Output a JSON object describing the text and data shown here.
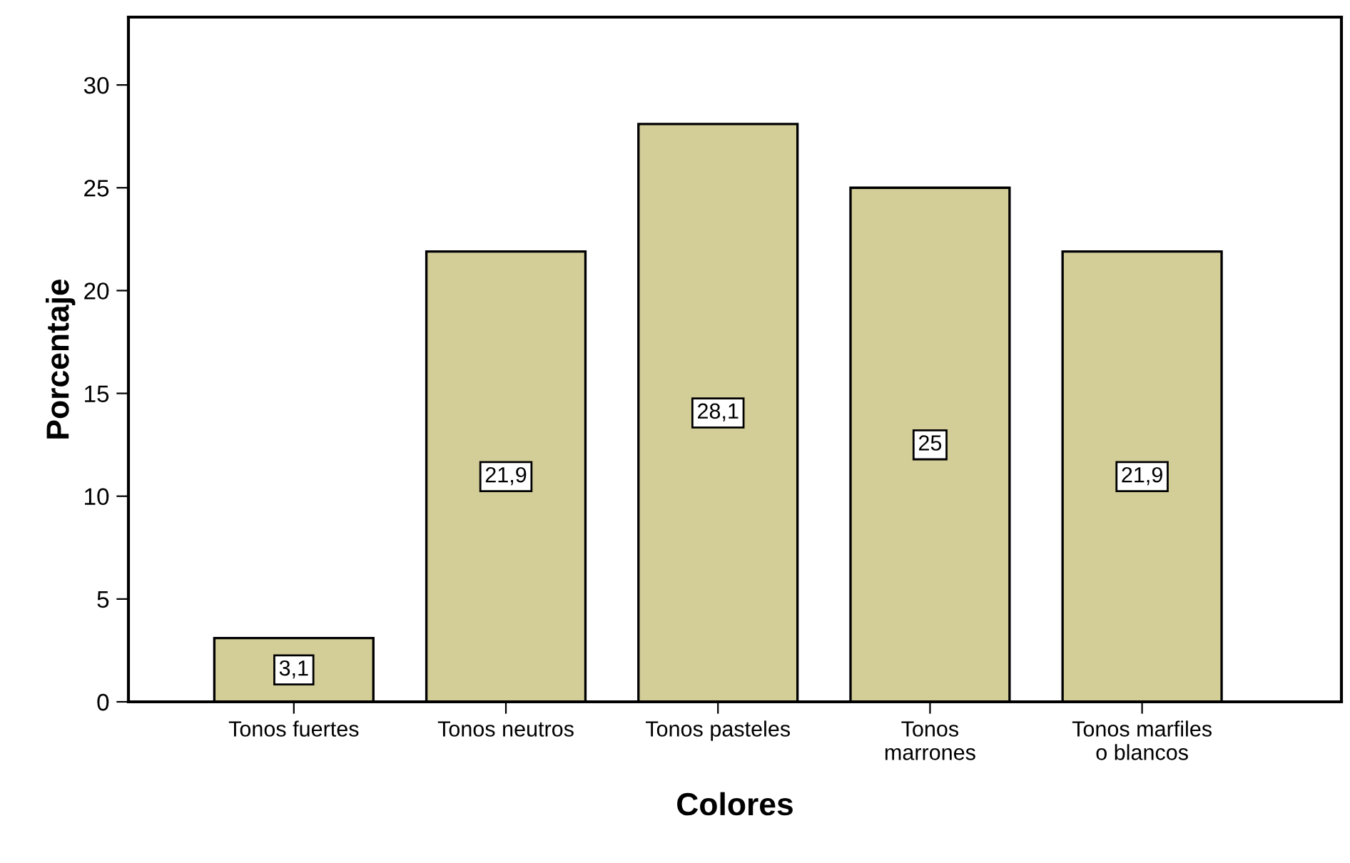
{
  "chart_data": {
    "type": "bar",
    "xlabel": "Colores",
    "ylabel": "Porcentaje",
    "categories": [
      "Tonos fuertes",
      "Tonos neutros",
      "Tonos pasteles",
      "Tonos\nmarrones",
      "Tonos marfiles\no blancos"
    ],
    "values": [
      3.1,
      21.9,
      28.1,
      25,
      21.9
    ],
    "value_labels": [
      "3,1",
      "21,9",
      "28,1",
      "25",
      "21,9"
    ],
    "color": "#d3cd98",
    "ylim": [
      0,
      33.3
    ],
    "yticks": [
      0,
      5,
      10,
      15,
      20,
      25,
      30
    ],
    "grid": false
  }
}
